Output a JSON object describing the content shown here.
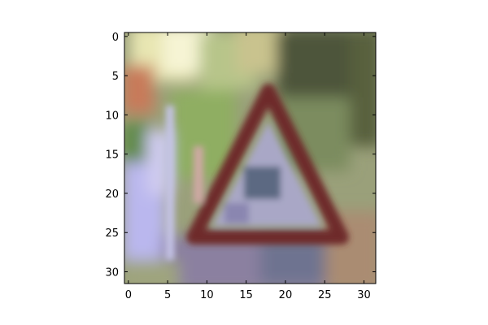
{
  "figure": {
    "x_ticks": [
      "0",
      "5",
      "10",
      "15",
      "20",
      "25",
      "30"
    ],
    "y_ticks": [
      "0",
      "5",
      "10",
      "15",
      "20",
      "25",
      "30"
    ],
    "x_tick_values": [
      0,
      5,
      10,
      15,
      20,
      25,
      30
    ],
    "y_tick_values": [
      0,
      5,
      10,
      15,
      20,
      25,
      30
    ],
    "image_grid": [
      32,
      32
    ],
    "axis_range": [
      -0.5,
      31.5
    ],
    "image_subject": "blurry low-resolution photo of a red triangular road warning sign with foliage background",
    "colors": {
      "foliage_light": "#f0eec0",
      "foliage_green": "#8ea86a",
      "foliage_dark": "#4e5a3a",
      "sign_border": "#6e2c2a",
      "sign_interior": "#a9a6c4",
      "sky_lavender": "#bcb8f0",
      "axis_line": "#000000"
    }
  }
}
